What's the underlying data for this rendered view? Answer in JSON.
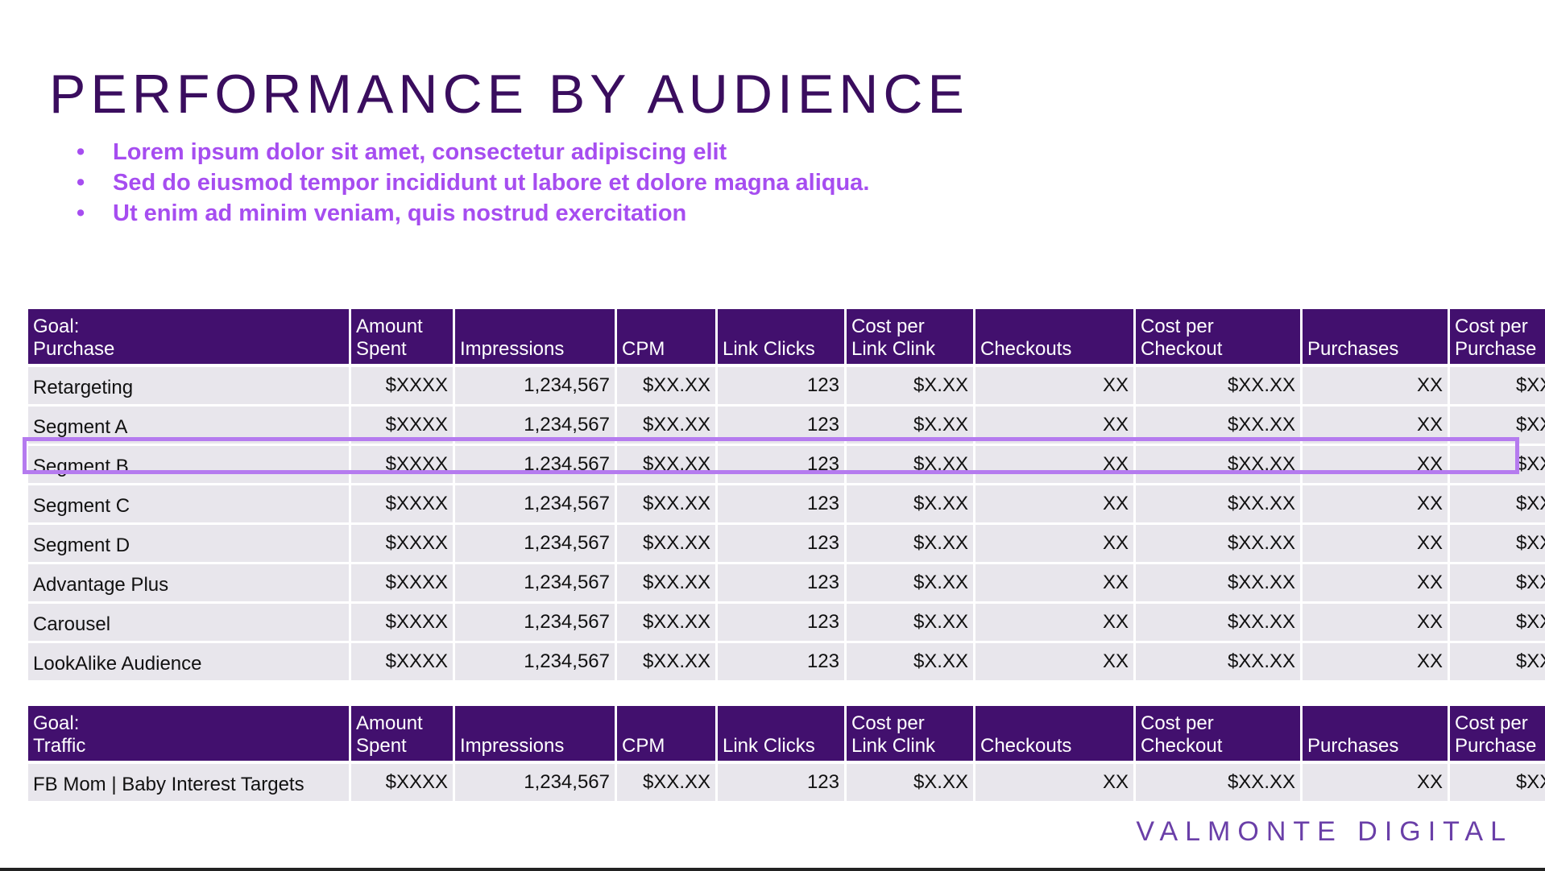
{
  "title": "PERFORMANCE BY AUDIENCE",
  "bullets": [
    "Lorem ipsum dolor sit amet, consectetur adipiscing elit",
    "Sed do eiusmod tempor incididunt ut labore et dolore magna aliqua.",
    "Ut enim ad minim veniam, quis nostrud exercitation"
  ],
  "bullet_glyph": "•",
  "columns": [
    [
      "Amount",
      "Spent"
    ],
    [
      "",
      "Impressions"
    ],
    [
      "",
      "CPM"
    ],
    [
      "",
      "Link Clicks"
    ],
    [
      "Cost per",
      "Link Clink"
    ],
    [
      "",
      "Checkouts"
    ],
    [
      "Cost per",
      "Checkout"
    ],
    [
      "",
      "Purchases"
    ],
    [
      "Cost per",
      "Purchase"
    ]
  ],
  "tables": [
    {
      "goal_line1": "Goal:",
      "goal_line2": "Purchase",
      "rows": [
        {
          "label": "Retargeting",
          "values": [
            "$XXXX",
            "1,234,567",
            "$XX.XX",
            "123",
            "$X.XX",
            "XX",
            "$XX.XX",
            "XX",
            "$XX.XX"
          ]
        },
        {
          "label": "Segment A",
          "values": [
            "$XXXX",
            "1,234,567",
            "$XX.XX",
            "123",
            "$X.XX",
            "XX",
            "$XX.XX",
            "XX",
            "$XX.XX"
          ]
        },
        {
          "label": "Segment B",
          "values": [
            "$XXXX",
            "1,234,567",
            "$XX.XX",
            "123",
            "$X.XX",
            "XX",
            "$XX.XX",
            "XX",
            "$XX.XX"
          ]
        },
        {
          "label": "Segment C",
          "values": [
            "$XXXX",
            "1,234,567",
            "$XX.XX",
            "123",
            "$X.XX",
            "XX",
            "$XX.XX",
            "XX",
            "$XX.XX"
          ]
        },
        {
          "label": "Segment D",
          "values": [
            "$XXXX",
            "1,234,567",
            "$XX.XX",
            "123",
            "$X.XX",
            "XX",
            "$XX.XX",
            "XX",
            "$XX.XX"
          ]
        },
        {
          "label": "Advantage Plus",
          "values": [
            "$XXXX",
            "1,234,567",
            "$XX.XX",
            "123",
            "$X.XX",
            "XX",
            "$XX.XX",
            "XX",
            "$XX.XX"
          ]
        },
        {
          "label": "Carousel",
          "values": [
            "$XXXX",
            "1,234,567",
            "$XX.XX",
            "123",
            "$X.XX",
            "XX",
            "$XX.XX",
            "XX",
            "$XX.XX"
          ]
        },
        {
          "label": "LookAlike Audience",
          "values": [
            "$XXXX",
            "1,234,567",
            "$XX.XX",
            "123",
            "$X.XX",
            "XX",
            "$XX.XX",
            "XX",
            "$XX.XX"
          ]
        }
      ]
    },
    {
      "goal_line1": "Goal:",
      "goal_line2": "Traffic",
      "rows": [
        {
          "label": "FB Mom | Baby Interest Targets",
          "values": [
            "$XXXX",
            "1,234,567",
            "$XX.XX",
            "123",
            "$X.XX",
            "XX",
            "$XX.XX",
            "XX",
            "$XX.XX"
          ]
        }
      ]
    }
  ],
  "brand": "VALMONTE DIGITAL",
  "colors": {
    "title": "#3a0d5e",
    "bullets": "#a64df0",
    "header_bg": "#42106e",
    "row_bg": "#e8e6ec",
    "highlight": "#b57bef",
    "brand": "#6a3fa8"
  }
}
